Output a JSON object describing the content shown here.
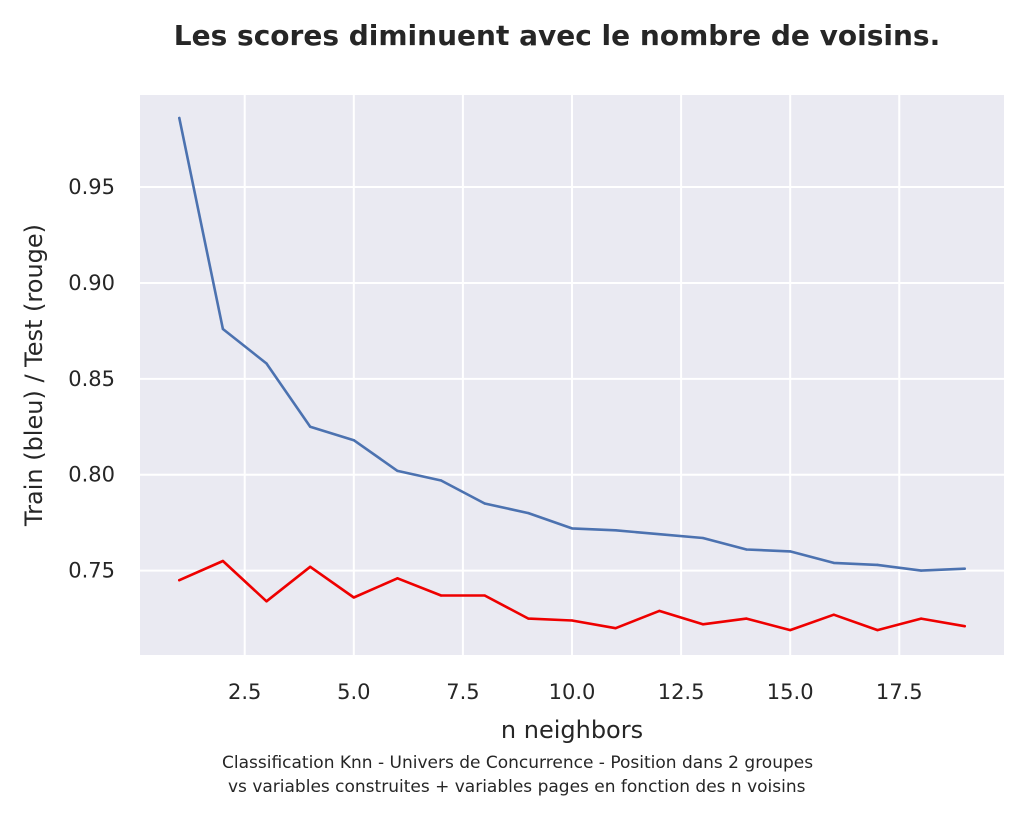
{
  "chart_data": {
    "type": "line",
    "title": "Les scores diminuent avec le nombre de voisins.",
    "xlabel": "n neighbors",
    "ylabel": "Train (bleu) / Test (rouge)",
    "caption_lines": [
      "Classification Knn - Univers de Concurrence - Position  dans 2 groupes",
      "vs variables construites + variables pages en fonction des n voisins"
    ],
    "xlim": [
      0.1,
      19.9
    ],
    "ylim": [
      0.706,
      0.998
    ],
    "x_ticks": [
      2.5,
      5.0,
      7.5,
      10.0,
      12.5,
      15.0,
      17.5
    ],
    "x_tick_labels": [
      "2.5",
      "5.0",
      "7.5",
      "10.0",
      "12.5",
      "15.0",
      "17.5"
    ],
    "y_ticks": [
      0.75,
      0.8,
      0.85,
      0.9,
      0.95
    ],
    "y_tick_labels": [
      "0.75",
      "0.80",
      "0.85",
      "0.90",
      "0.95"
    ],
    "grid": true,
    "x": [
      1,
      2,
      3,
      4,
      5,
      6,
      7,
      8,
      9,
      10,
      11,
      12,
      13,
      14,
      15,
      16,
      17,
      18,
      19
    ],
    "series": [
      {
        "color": "#4c72b0",
        "values": [
          0.986,
          0.876,
          0.858,
          0.825,
          0.818,
          0.802,
          0.797,
          0.785,
          0.78,
          0.772,
          0.771,
          0.769,
          0.767,
          0.761,
          0.76,
          0.754,
          0.753,
          0.75,
          0.751
        ]
      },
      {
        "color": "#ee0000",
        "values": [
          0.745,
          0.755,
          0.734,
          0.752,
          0.736,
          0.746,
          0.737,
          0.737,
          0.725,
          0.724,
          0.72,
          0.729,
          0.722,
          0.725,
          0.719,
          0.727,
          0.719,
          0.725,
          0.721
        ]
      }
    ]
  },
  "colors": {
    "plot_background": "#eaeaf2",
    "grid": "#ffffff",
    "text": "#262626"
  }
}
